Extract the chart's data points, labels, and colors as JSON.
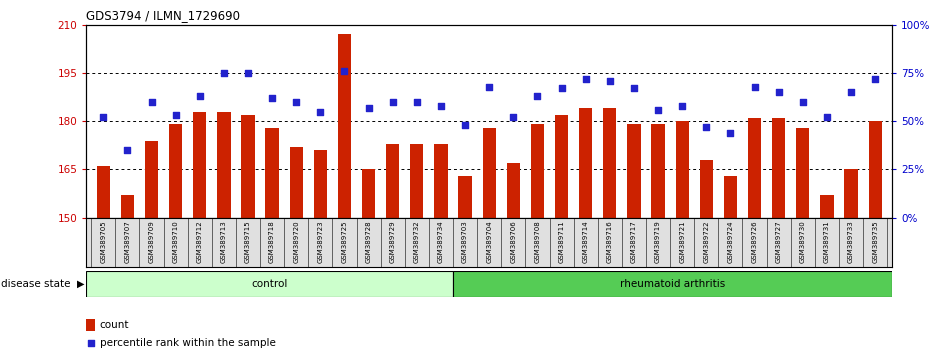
{
  "title": "GDS3794 / ILMN_1729690",
  "samples": [
    "GSM389705",
    "GSM389707",
    "GSM389709",
    "GSM389710",
    "GSM389712",
    "GSM389713",
    "GSM389715",
    "GSM389718",
    "GSM389720",
    "GSM389723",
    "GSM389725",
    "GSM389728",
    "GSM389729",
    "GSM389732",
    "GSM389734",
    "GSM389703",
    "GSM389704",
    "GSM389706",
    "GSM389708",
    "GSM389711",
    "GSM389714",
    "GSM389716",
    "GSM389717",
    "GSM389719",
    "GSM389721",
    "GSM389722",
    "GSM389724",
    "GSM389726",
    "GSM389727",
    "GSM389730",
    "GSM389731",
    "GSM389733",
    "GSM389735"
  ],
  "counts": [
    166,
    157,
    174,
    179,
    183,
    183,
    182,
    178,
    172,
    171,
    207,
    165,
    173,
    173,
    173,
    163,
    178,
    167,
    179,
    182,
    184,
    184,
    179,
    179,
    180,
    168,
    163,
    181,
    181,
    178,
    157,
    165,
    180
  ],
  "percentiles": [
    52,
    35,
    60,
    53,
    63,
    75,
    75,
    62,
    60,
    55,
    76,
    57,
    60,
    60,
    58,
    48,
    68,
    52,
    63,
    67,
    72,
    71,
    67,
    56,
    58,
    47,
    44,
    68,
    65,
    60,
    52,
    65,
    72
  ],
  "n_control": 15,
  "ylim_left": [
    150,
    210
  ],
  "ylim_right": [
    0,
    100
  ],
  "yticks_left": [
    150,
    165,
    180,
    195,
    210
  ],
  "yticks_right": [
    0,
    25,
    50,
    75,
    100
  ],
  "ytick_labels_right": [
    "0%",
    "25%",
    "50%",
    "75%",
    "100%"
  ],
  "bar_color": "#CC2200",
  "dot_color": "#2222CC",
  "control_color": "#CCFFCC",
  "ra_color": "#55CC55",
  "bg_color": "#FFFFFF",
  "label_count": "count",
  "label_percentile": "percentile rank within the sample",
  "label_disease": "disease state",
  "label_control": "control",
  "label_ra": "rheumatoid arthritis",
  "tick_label_color_left": "#CC0000",
  "tick_label_color_right": "#0000CC"
}
